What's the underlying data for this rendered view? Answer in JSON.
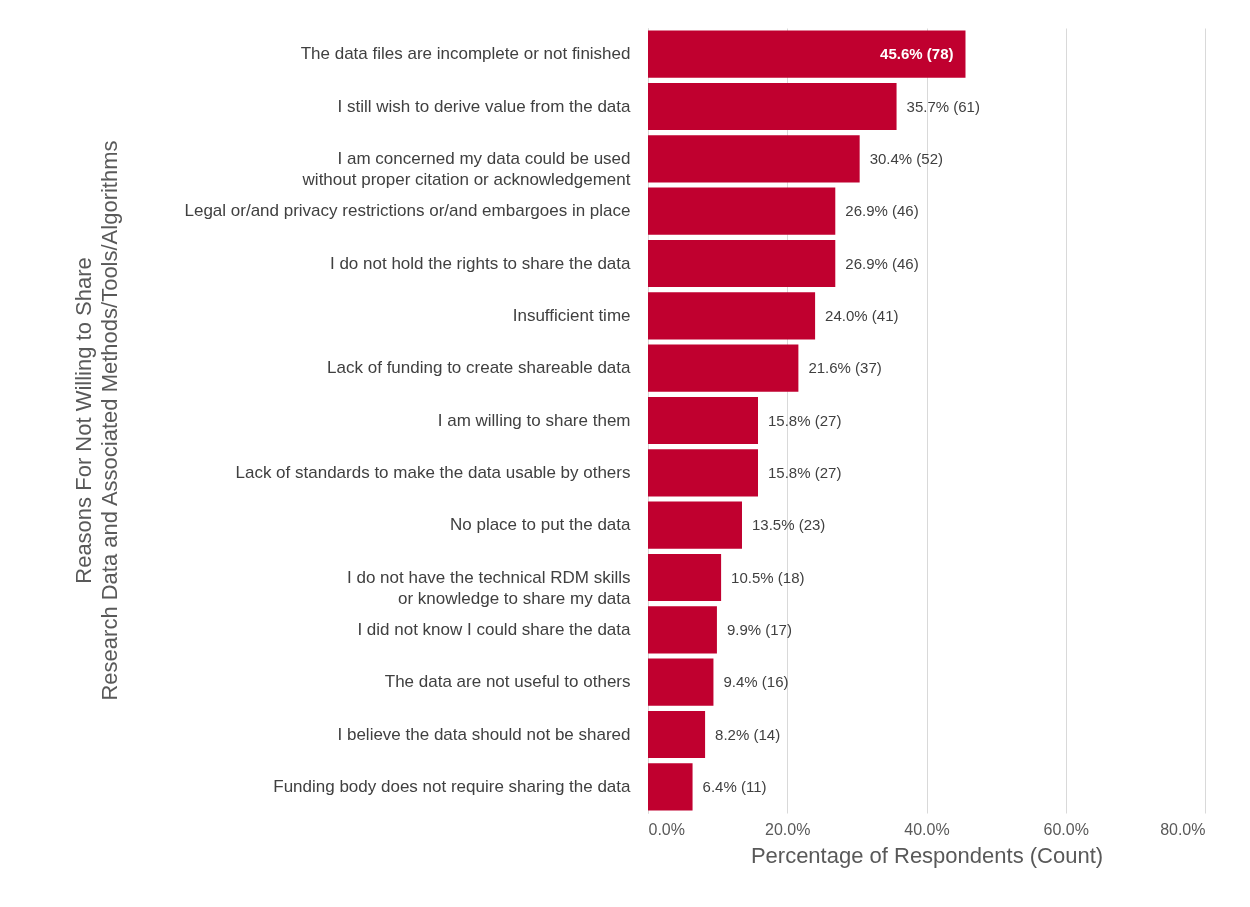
{
  "chart_data": {
    "type": "bar",
    "orientation": "horizontal",
    "xlabel": "Percentage of Respondents (Count)",
    "ylabel": "Reasons For Not Willing to Share\nResearch Data and Associated Methods/Tools/Algorithms",
    "categories": [
      "The data files are incomplete or not finished",
      "I still wish to derive value from the data",
      "I am concerned my data could be used\nwithout proper citation or acknowledgement",
      "Legal or/and privacy restrictions or/and embargoes in place",
      "I do not hold the rights to share the data",
      "Insufficient time",
      "Lack of funding to create shareable data",
      "I am willing to share them",
      "Lack of standards to make the data usable by others",
      "No place to put the data",
      "I do not have the technical RDM skills\nor knowledge to share my data",
      "I did not know I could share the data",
      "The data are not useful to others",
      "I believe the data should not be shared",
      "Funding body does not require sharing the data"
    ],
    "values": [
      45.6,
      35.7,
      30.4,
      26.9,
      26.9,
      24.0,
      21.6,
      15.8,
      15.8,
      13.5,
      10.5,
      9.9,
      9.4,
      8.2,
      6.4
    ],
    "value_labels": [
      "45.6% (78)",
      "35.7% (61)",
      "30.4% (52)",
      "26.9% (46)",
      "26.9% (46)",
      "24.0% (41)",
      "21.6% (37)",
      "15.8% (27)",
      "15.8% (27)",
      "13.5% (23)",
      "10.5% (18)",
      "9.9% (17)",
      "9.4% (16)",
      "8.2% (14)",
      "6.4% (11)"
    ],
    "color": "#c0002f",
    "xlim": [
      0,
      80
    ],
    "xticks": [
      {
        "value": 0,
        "label": "0.0%"
      },
      {
        "value": 20,
        "label": "20.0%"
      },
      {
        "value": 40,
        "label": "40.0%"
      },
      {
        "value": 60,
        "label": "60.0%"
      },
      {
        "value": 80,
        "label": "80.0%"
      }
    ],
    "grid": "x"
  }
}
